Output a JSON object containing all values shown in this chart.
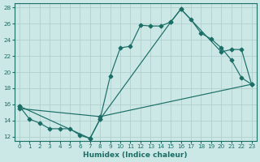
{
  "xlabel": "Humidex (Indice chaleur)",
  "bg_color": "#cce8e6",
  "grid_color": "#b0d0ce",
  "line_color": "#1a6e66",
  "xlim": [
    -0.5,
    23.5
  ],
  "ylim": [
    11.5,
    28.5
  ],
  "xticks": [
    0,
    1,
    2,
    3,
    4,
    5,
    6,
    7,
    8,
    9,
    10,
    11,
    12,
    13,
    14,
    15,
    16,
    17,
    18,
    19,
    20,
    21,
    22,
    23
  ],
  "yticks": [
    12,
    14,
    16,
    18,
    20,
    22,
    24,
    26,
    28
  ],
  "line1_x": [
    0,
    1,
    2,
    3,
    4,
    5,
    6,
    7,
    8,
    9,
    10,
    11,
    12,
    13,
    14,
    15,
    16,
    17,
    18,
    19,
    20,
    21,
    22,
    23
  ],
  "line1_y": [
    15.8,
    14.2,
    13.7,
    13.0,
    13.0,
    13.0,
    12.2,
    11.8,
    14.2,
    19.5,
    23.0,
    23.2,
    25.8,
    25.7,
    25.7,
    26.2,
    27.8,
    26.5,
    24.8,
    24.1,
    23.0,
    21.5,
    19.3,
    18.5
  ],
  "line2_x": [
    0,
    7,
    8,
    15,
    16,
    20,
    21,
    22,
    23
  ],
  "line2_y": [
    15.8,
    11.8,
    14.2,
    26.2,
    27.8,
    22.5,
    22.8,
    22.8,
    18.5
  ],
  "line3_x": [
    0,
    8,
    23
  ],
  "line3_y": [
    15.5,
    14.5,
    18.5
  ],
  "figsize": [
    3.2,
    2.0
  ],
  "dpi": 100
}
